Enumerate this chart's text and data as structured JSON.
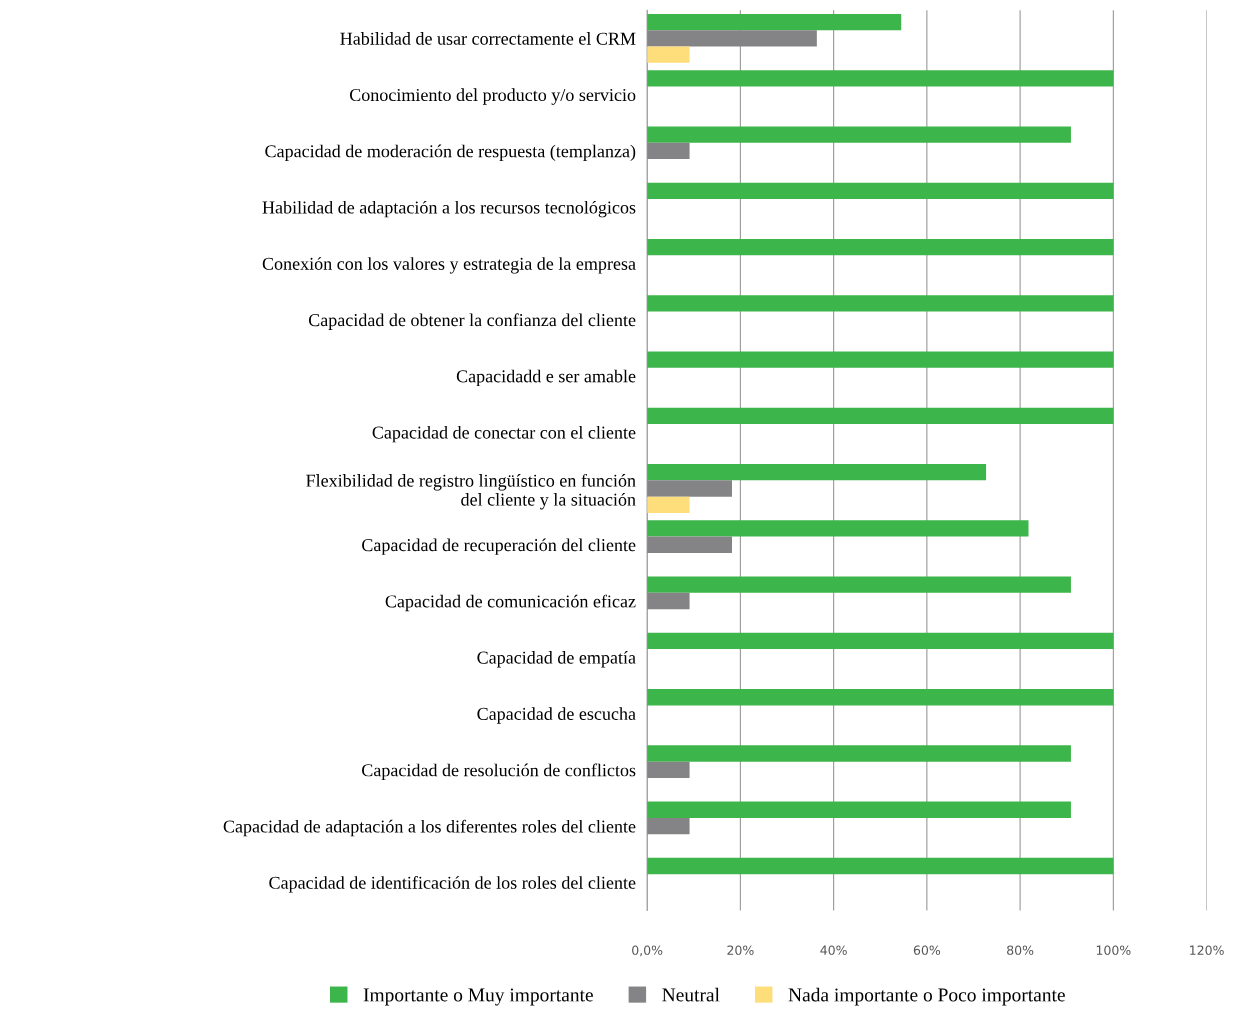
{
  "chart_data": {
    "type": "bar",
    "orientation": "horizontal",
    "categories": [
      "Habilidad de usar correctamente el CRM",
      "Conocimiento del producto y/o servicio",
      "Capacidad de moderación de respuesta (templanza)",
      "Habilidad de adaptación a los recursos tecnológicos",
      "Conexión con los valores y estrategia de la empresa",
      "Capacidad de obtener la confianza del cliente",
      "Capacidadd e ser amable",
      "Capacidad de conectar con el cliente",
      "Flexibilidad de registro lingüístico en función\ndel cliente y la situación",
      "Capacidad de recuperación del cliente",
      "Capacidad de comunicación eficaz",
      "Capacidad de empatía",
      "Capacidad de escucha",
      "Capacidad de resolución de conflictos",
      "Capacidad de adaptación a los diferentes roles del cliente",
      "Capacidad de identificación de los roles del cliente"
    ],
    "series": [
      {
        "name": "Importante o Muy importante",
        "color": "#3cb54a",
        "values": [
          54.5,
          100,
          90.9,
          100,
          100,
          100,
          100,
          100,
          72.7,
          81.8,
          90.9,
          100,
          100,
          90.9,
          90.9,
          100
        ]
      },
      {
        "name": "Neutral",
        "color": "#848487",
        "values": [
          36.4,
          null,
          9.1,
          null,
          null,
          null,
          null,
          null,
          18.2,
          18.2,
          9.1,
          null,
          null,
          9.1,
          9.1,
          null
        ]
      },
      {
        "name": "Nada importante o Poco importante",
        "color": "#fedd7b",
        "values": [
          9.1,
          null,
          null,
          null,
          null,
          null,
          null,
          null,
          9.1,
          null,
          null,
          null,
          null,
          null,
          null,
          null
        ]
      }
    ],
    "xlim": [
      0,
      120
    ],
    "xticks": [
      {
        "value": 0,
        "label": "0,0%"
      },
      {
        "value": 20,
        "label": "20%"
      },
      {
        "value": 40,
        "label": "40%"
      },
      {
        "value": 60,
        "label": "60%"
      },
      {
        "value": 80,
        "label": "80%"
      },
      {
        "value": 100,
        "label": "100%"
      },
      {
        "value": 120,
        "label": "120%"
      }
    ],
    "grid": "x",
    "legend": "bottom"
  }
}
